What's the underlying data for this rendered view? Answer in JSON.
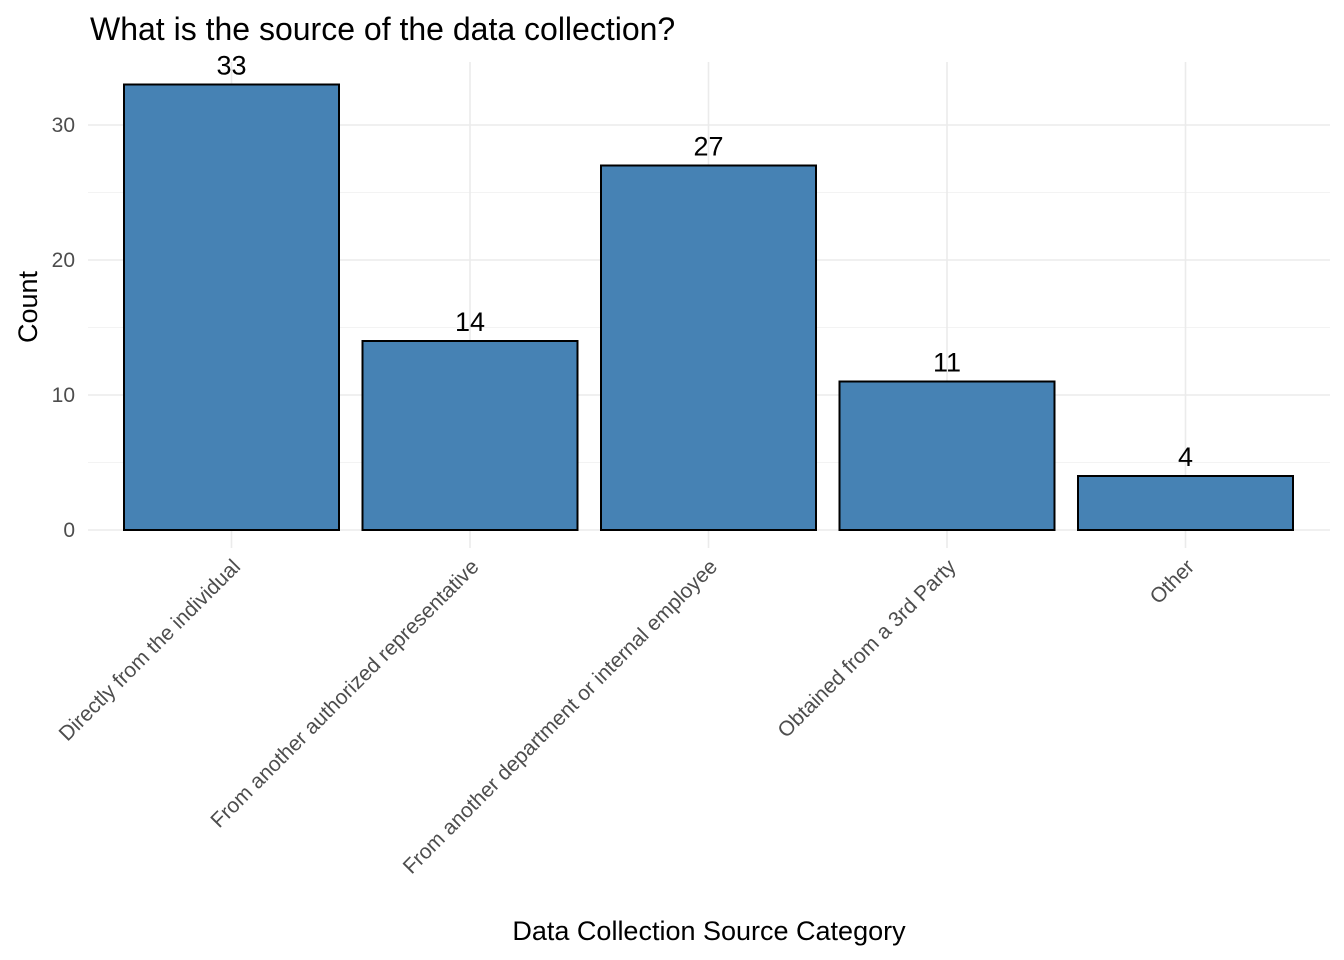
{
  "chart_data": {
    "type": "bar",
    "title": "What is the source of the data collection?",
    "xlabel": "Data Collection Source Category",
    "ylabel": "Count",
    "categories": [
      "Directly from the individual",
      "From another authorized representative",
      "From another department or internal employee",
      "Obtained from a 3rd Party",
      "Other"
    ],
    "values": [
      33,
      14,
      27,
      11,
      4
    ],
    "data_labels": [
      "33",
      "14",
      "27",
      "11",
      "4"
    ],
    "ylim": [
      0,
      35
    ],
    "yticks": [
      0,
      10,
      20,
      30
    ],
    "ytick_labels": [
      "0",
      "10",
      "20",
      "30"
    ],
    "grid": true,
    "legend": "none",
    "bar_color": "#4682b4",
    "bar_outline": "#000000"
  }
}
